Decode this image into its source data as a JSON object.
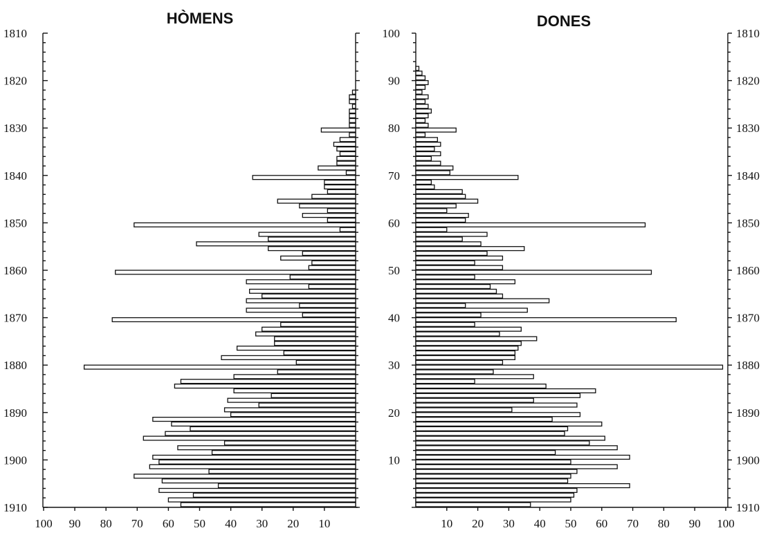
{
  "chart_data": [
    {
      "type": "bar",
      "orientation": "horizontal",
      "direction": "leftward",
      "title": "HÒMENS",
      "y_axis": {
        "range": [
          1810,
          1910
        ],
        "ticks": [
          "1810",
          "1820",
          "1830",
          "1840",
          "1850",
          "1860",
          "1870",
          "1880",
          "1890",
          "1900",
          "1910"
        ]
      },
      "x_axis": {
        "range": [
          100,
          0
        ],
        "ticks": [
          "100",
          "90",
          "80",
          "70",
          "60",
          "50",
          "40",
          "30",
          "20",
          "10"
        ]
      },
      "values_by_year": [
        [
          1822,
          1
        ],
        [
          1823,
          2
        ],
        [
          1824,
          2
        ],
        [
          1825,
          1
        ],
        [
          1826,
          2
        ],
        [
          1827,
          2
        ],
        [
          1828,
          2
        ],
        [
          1829,
          2
        ],
        [
          1830,
          11
        ],
        [
          1831,
          2
        ],
        [
          1832,
          5
        ],
        [
          1833,
          7
        ],
        [
          1834,
          6
        ],
        [
          1835,
          5
        ],
        [
          1836,
          6
        ],
        [
          1837,
          6
        ],
        [
          1838,
          12
        ],
        [
          1839,
          3
        ],
        [
          1840,
          33
        ],
        [
          1841,
          10
        ],
        [
          1842,
          10
        ],
        [
          1843,
          9
        ],
        [
          1844,
          14
        ],
        [
          1845,
          25
        ],
        [
          1846,
          18
        ],
        [
          1847,
          9
        ],
        [
          1848,
          17
        ],
        [
          1849,
          9
        ],
        [
          1850,
          71
        ],
        [
          1851,
          5
        ],
        [
          1852,
          31
        ],
        [
          1853,
          28
        ],
        [
          1854,
          51
        ],
        [
          1855,
          28
        ],
        [
          1856,
          17
        ],
        [
          1857,
          24
        ],
        [
          1858,
          14
        ],
        [
          1859,
          15
        ],
        [
          1860,
          77
        ],
        [
          1861,
          21
        ],
        [
          1862,
          35
        ],
        [
          1863,
          15
        ],
        [
          1864,
          34
        ],
        [
          1865,
          30
        ],
        [
          1866,
          35
        ],
        [
          1867,
          18
        ],
        [
          1868,
          35
        ],
        [
          1869,
          17
        ],
        [
          1870,
          78
        ],
        [
          1871,
          24
        ],
        [
          1872,
          30
        ],
        [
          1873,
          32
        ],
        [
          1874,
          26
        ],
        [
          1875,
          26
        ],
        [
          1876,
          38
        ],
        [
          1877,
          23
        ],
        [
          1878,
          43
        ],
        [
          1879,
          19
        ],
        [
          1880,
          87
        ],
        [
          1881,
          25
        ],
        [
          1882,
          39
        ],
        [
          1883,
          56
        ],
        [
          1884,
          58
        ],
        [
          1885,
          39
        ],
        [
          1886,
          27
        ],
        [
          1887,
          41
        ],
        [
          1888,
          31
        ],
        [
          1889,
          42
        ],
        [
          1890,
          40
        ],
        [
          1891,
          65
        ],
        [
          1892,
          59
        ],
        [
          1893,
          53
        ],
        [
          1894,
          61
        ],
        [
          1895,
          68
        ],
        [
          1896,
          42
        ],
        [
          1897,
          57
        ],
        [
          1898,
          46
        ],
        [
          1899,
          65
        ],
        [
          1900,
          63
        ],
        [
          1901,
          66
        ],
        [
          1902,
          47
        ],
        [
          1903,
          71
        ],
        [
          1904,
          62
        ],
        [
          1905,
          44
        ],
        [
          1906,
          63
        ],
        [
          1907,
          52
        ],
        [
          1908,
          60
        ],
        [
          1909,
          56
        ]
      ]
    },
    {
      "type": "bar",
      "orientation": "horizontal",
      "direction": "rightward",
      "title": "DONES",
      "y_axis_left": {
        "range": [
          0,
          100
        ],
        "ticks": [
          "0",
          "10",
          "20",
          "30",
          "40",
          "50",
          "60",
          "70",
          "80",
          "90",
          "100"
        ]
      },
      "y_axis_right": {
        "range": [
          1810,
          1910
        ],
        "ticks": [
          "1810",
          "1820",
          "1830",
          "1840",
          "1850",
          "1860",
          "1870",
          "1880",
          "1890",
          "1900",
          "1910"
        ]
      },
      "x_axis": {
        "range": [
          0,
          100
        ],
        "ticks": [
          "10",
          "20",
          "30",
          "40",
          "50",
          "60",
          "70",
          "80",
          "90",
          "100"
        ]
      },
      "values_by_year": [
        [
          1817,
          1
        ],
        [
          1818,
          2
        ],
        [
          1819,
          3
        ],
        [
          1820,
          4
        ],
        [
          1821,
          3
        ],
        [
          1822,
          2
        ],
        [
          1823,
          4
        ],
        [
          1824,
          3
        ],
        [
          1825,
          4
        ],
        [
          1826,
          5
        ],
        [
          1827,
          4
        ],
        [
          1828,
          3
        ],
        [
          1829,
          4
        ],
        [
          1830,
          13
        ],
        [
          1831,
          3
        ],
        [
          1832,
          7
        ],
        [
          1833,
          8
        ],
        [
          1834,
          6
        ],
        [
          1835,
          8
        ],
        [
          1836,
          5
        ],
        [
          1837,
          8
        ],
        [
          1838,
          12
        ],
        [
          1839,
          11
        ],
        [
          1840,
          33
        ],
        [
          1841,
          5
        ],
        [
          1842,
          6
        ],
        [
          1843,
          15
        ],
        [
          1844,
          16
        ],
        [
          1845,
          20
        ],
        [
          1846,
          13
        ],
        [
          1847,
          10
        ],
        [
          1848,
          17
        ],
        [
          1849,
          16
        ],
        [
          1850,
          74
        ],
        [
          1851,
          10
        ],
        [
          1852,
          23
        ],
        [
          1853,
          15
        ],
        [
          1854,
          21
        ],
        [
          1855,
          35
        ],
        [
          1856,
          23
        ],
        [
          1857,
          28
        ],
        [
          1858,
          19
        ],
        [
          1859,
          28
        ],
        [
          1860,
          76
        ],
        [
          1861,
          19
        ],
        [
          1862,
          32
        ],
        [
          1863,
          24
        ],
        [
          1864,
          26
        ],
        [
          1865,
          28
        ],
        [
          1866,
          43
        ],
        [
          1867,
          16
        ],
        [
          1868,
          36
        ],
        [
          1869,
          21
        ],
        [
          1870,
          84
        ],
        [
          1871,
          19
        ],
        [
          1872,
          34
        ],
        [
          1873,
          27
        ],
        [
          1874,
          39
        ],
        [
          1875,
          34
        ],
        [
          1876,
          33
        ],
        [
          1877,
          32
        ],
        [
          1878,
          32
        ],
        [
          1879,
          28
        ],
        [
          1880,
          99
        ],
        [
          1881,
          25
        ],
        [
          1882,
          38
        ],
        [
          1883,
          19
        ],
        [
          1884,
          42
        ],
        [
          1885,
          58
        ],
        [
          1886,
          53
        ],
        [
          1887,
          38
        ],
        [
          1888,
          52
        ],
        [
          1889,
          31
        ],
        [
          1890,
          53
        ],
        [
          1891,
          44
        ],
        [
          1892,
          60
        ],
        [
          1893,
          49
        ],
        [
          1894,
          48
        ],
        [
          1895,
          61
        ],
        [
          1896,
          56
        ],
        [
          1897,
          65
        ],
        [
          1898,
          45
        ],
        [
          1899,
          69
        ],
        [
          1900,
          50
        ],
        [
          1901,
          65
        ],
        [
          1902,
          52
        ],
        [
          1903,
          50
        ],
        [
          1904,
          49
        ],
        [
          1905,
          69
        ],
        [
          1906,
          52
        ],
        [
          1907,
          51
        ],
        [
          1908,
          50
        ],
        [
          1909,
          37
        ]
      ]
    }
  ]
}
